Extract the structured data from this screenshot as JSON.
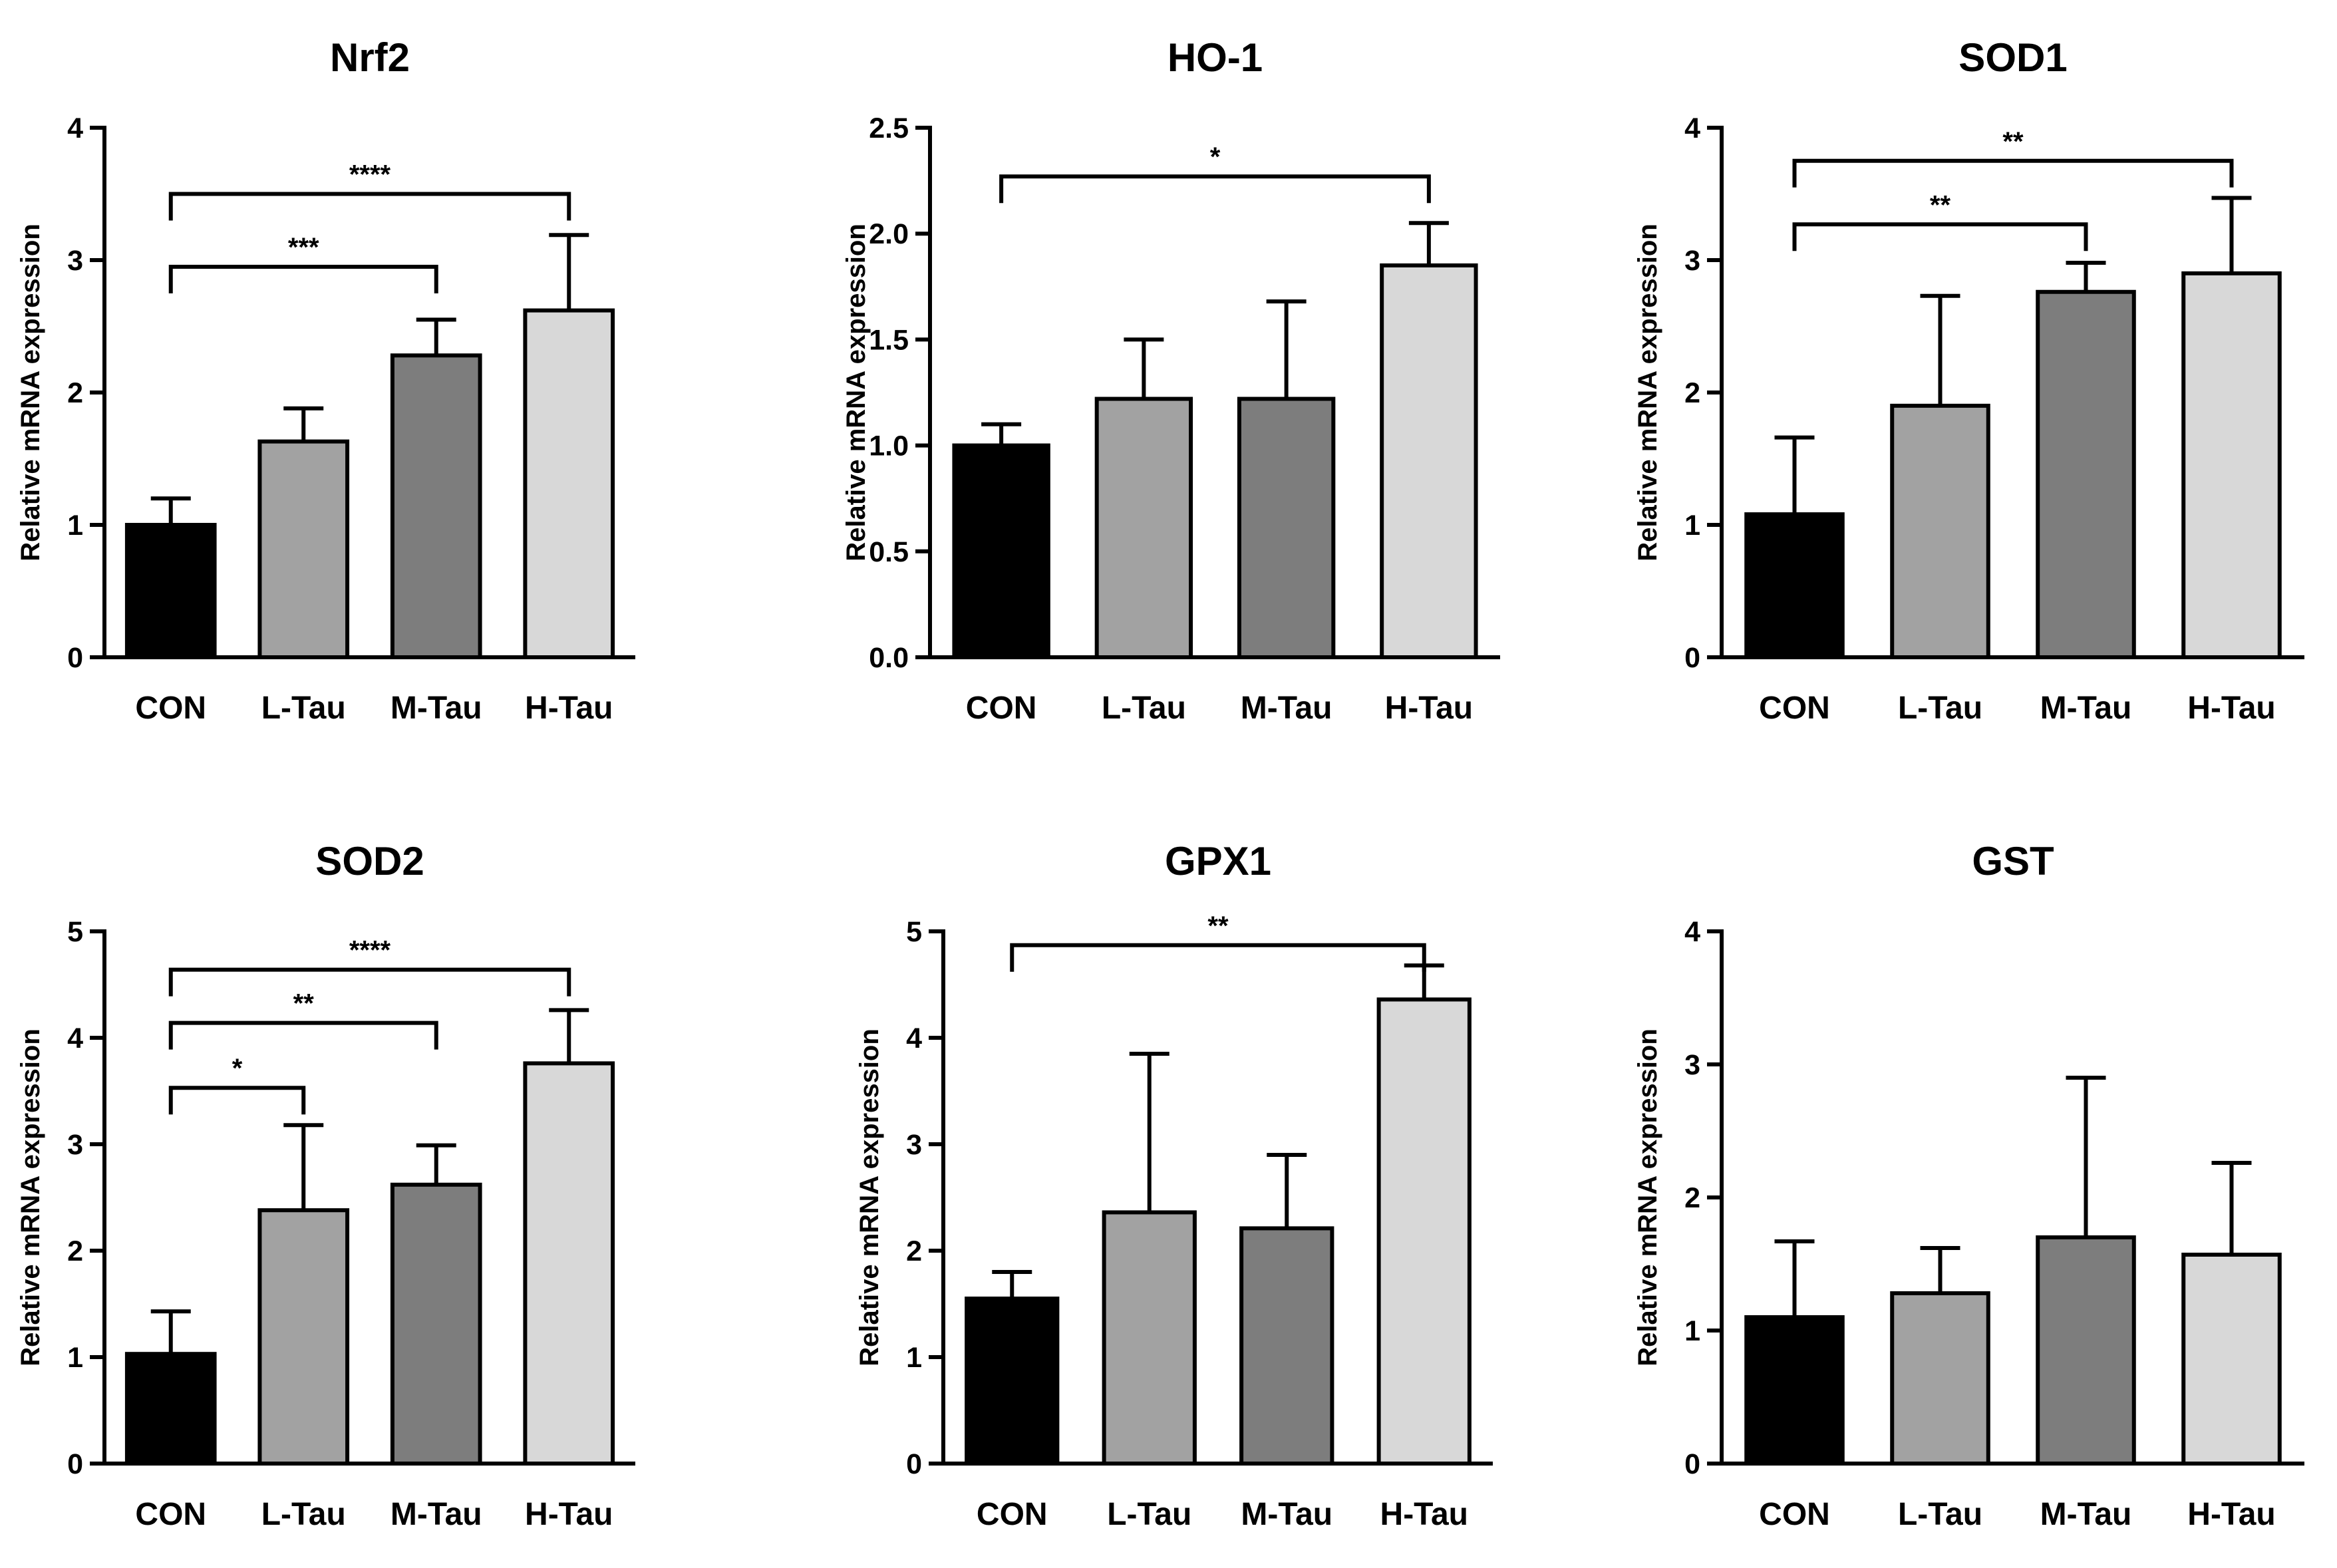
{
  "figure": {
    "ylabel": "Relative  mRNA  expression",
    "categories": [
      "CON",
      "L-Tau",
      "M-Tau",
      "H-Tau"
    ],
    "bar_colors": [
      "#000000",
      "#a2a2a2",
      "#7d7d7d",
      "#d8d8d8"
    ]
  },
  "chart_data": [
    {
      "type": "bar",
      "title": "Nrf2",
      "categories": [
        "CON",
        "L-Tau",
        "M-Tau",
        "H-Tau"
      ],
      "values": [
        1.0,
        1.63,
        2.28,
        2.62
      ],
      "errors": [
        0.2,
        0.25,
        0.27,
        0.57
      ],
      "ylim": [
        0,
        4
      ],
      "yticks": [
        0,
        1,
        2,
        3,
        4
      ],
      "ytick_labels": [
        "0",
        "1",
        "2",
        "3",
        "4"
      ],
      "xlabel": "",
      "ylabel": "Relative  mRNA  expression",
      "significance": [
        {
          "from": 0,
          "to": 2,
          "label": "***",
          "level": 2.95
        },
        {
          "from": 0,
          "to": 3,
          "label": "****",
          "level": 3.5
        }
      ]
    },
    {
      "type": "bar",
      "title": "HO-1",
      "categories": [
        "CON",
        "L-Tau",
        "M-Tau",
        "H-Tau"
      ],
      "values": [
        1.0,
        1.22,
        1.22,
        1.85
      ],
      "errors": [
        0.1,
        0.28,
        0.46,
        0.2
      ],
      "ylim": [
        0,
        2.5
      ],
      "yticks": [
        0,
        0.5,
        1.0,
        1.5,
        2.0,
        2.5
      ],
      "ytick_labels": [
        "0.0",
        "0.5",
        "1.0",
        "1.5",
        "2.0",
        "2.5"
      ],
      "xlabel": "",
      "ylabel": "Relative  mRNA  expression",
      "significance": [
        {
          "from": 0,
          "to": 3,
          "label": "*",
          "level": 2.27
        }
      ]
    },
    {
      "type": "bar",
      "title": "SOD1",
      "categories": [
        "CON",
        "L-Tau",
        "M-Tau",
        "H-Tau"
      ],
      "values": [
        1.08,
        1.9,
        2.76,
        2.9
      ],
      "errors": [
        0.58,
        0.83,
        0.22,
        0.57
      ],
      "ylim": [
        0,
        4
      ],
      "yticks": [
        0,
        1,
        2,
        3,
        4
      ],
      "ytick_labels": [
        "0",
        "1",
        "2",
        "3",
        "4"
      ],
      "xlabel": "",
      "ylabel": "Relative  mRNA  expression",
      "significance": [
        {
          "from": 0,
          "to": 2,
          "label": "**",
          "level": 3.27
        },
        {
          "from": 0,
          "to": 3,
          "label": "**",
          "level": 3.75
        }
      ]
    },
    {
      "type": "bar",
      "title": "SOD2",
      "categories": [
        "CON",
        "L-Tau",
        "M-Tau",
        "H-Tau"
      ],
      "values": [
        1.03,
        2.38,
        2.62,
        3.76
      ],
      "errors": [
        0.4,
        0.8,
        0.37,
        0.5
      ],
      "ylim": [
        0,
        5
      ],
      "yticks": [
        0,
        1,
        2,
        3,
        4,
        5
      ],
      "ytick_labels": [
        "0",
        "1",
        "2",
        "3",
        "4",
        "5"
      ],
      "xlabel": "",
      "ylabel": "Relative  mRNA  expression",
      "significance": [
        {
          "from": 0,
          "to": 1,
          "label": "*",
          "level": 3.53
        },
        {
          "from": 0,
          "to": 2,
          "label": "**",
          "level": 4.14
        },
        {
          "from": 0,
          "to": 3,
          "label": "****",
          "level": 4.64
        }
      ]
    },
    {
      "type": "bar",
      "title": "GPX1",
      "categories": [
        "CON",
        "L-Tau",
        "M-Tau",
        "H-Tau"
      ],
      "values": [
        1.55,
        2.36,
        2.21,
        4.36
      ],
      "errors": [
        0.25,
        1.49,
        0.69,
        0.32
      ],
      "ylim": [
        0,
        5
      ],
      "yticks": [
        0,
        1,
        2,
        3,
        4,
        5
      ],
      "ytick_labels": [
        "0",
        "1",
        "2",
        "3",
        "4",
        "5"
      ],
      "xlabel": "",
      "ylabel": "Relative  mRNA  expression",
      "significance": [
        {
          "from": 0,
          "to": 3,
          "label": "**",
          "level": 4.87
        }
      ]
    },
    {
      "type": "bar",
      "title": "GST",
      "categories": [
        "CON",
        "L-Tau",
        "M-Tau",
        "H-Tau"
      ],
      "values": [
        1.1,
        1.28,
        1.7,
        1.57
      ],
      "errors": [
        0.57,
        0.34,
        1.2,
        0.69
      ],
      "ylim": [
        0,
        4
      ],
      "yticks": [
        0,
        1,
        2,
        3,
        4
      ],
      "ytick_labels": [
        "0",
        "1",
        "2",
        "3",
        "4"
      ],
      "xlabel": "",
      "ylabel": "Relative  mRNA  expression",
      "significance": []
    }
  ]
}
